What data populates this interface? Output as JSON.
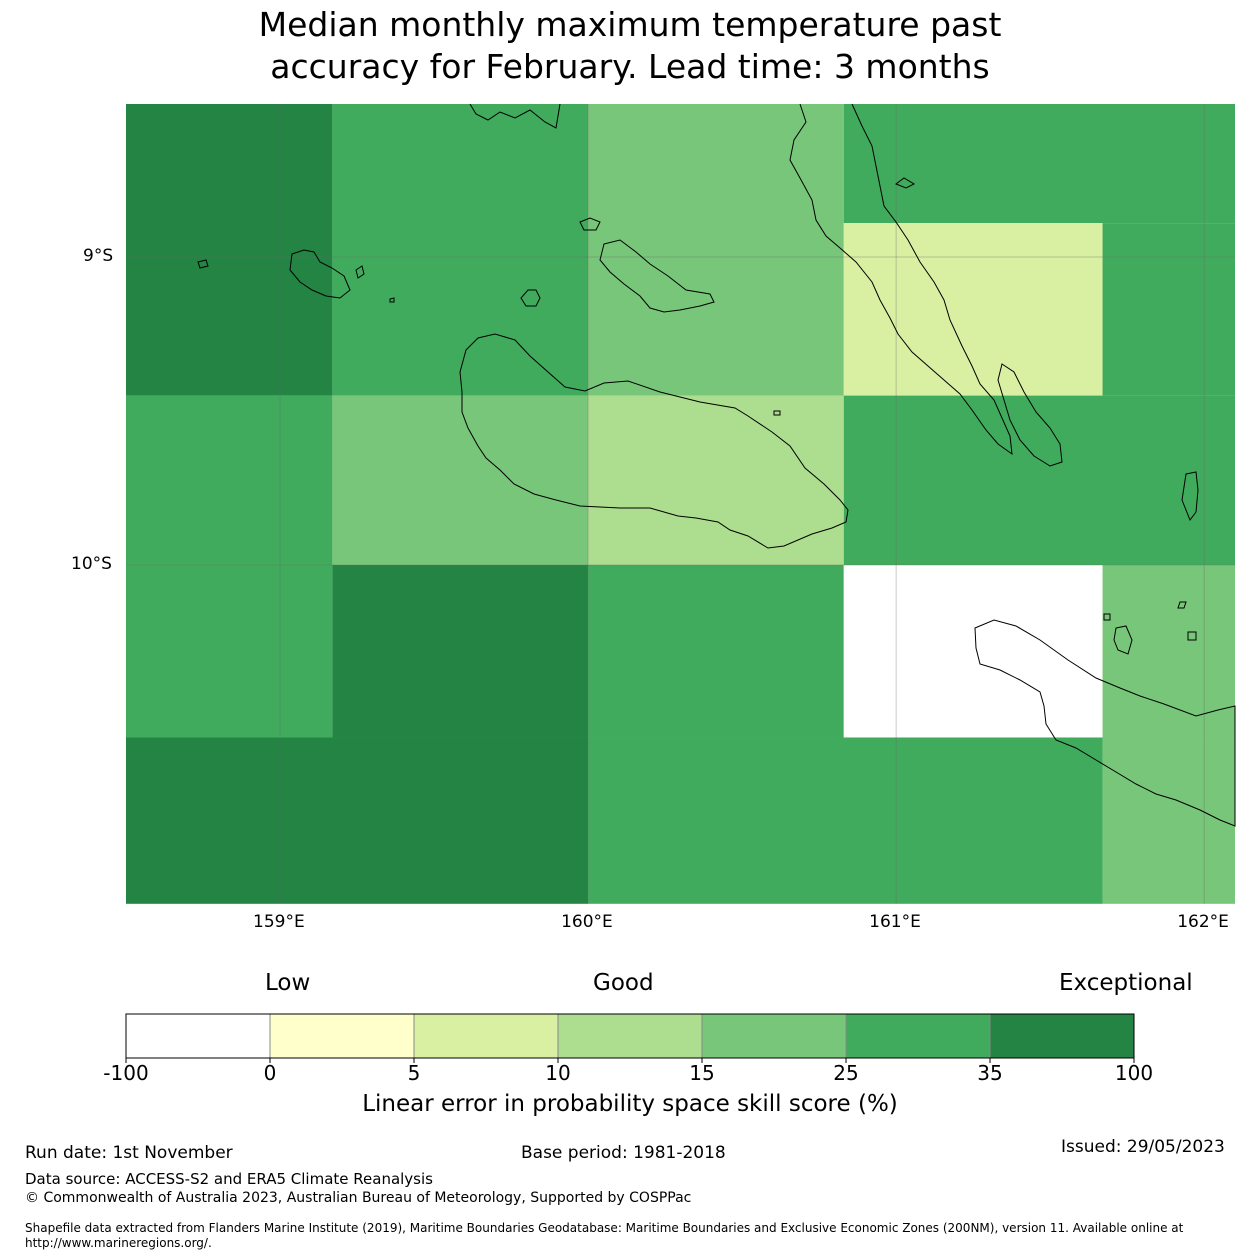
{
  "title": {
    "line1": "Median monthly maximum temperature past",
    "line2": "accuracy for February. Lead time: 3 months"
  },
  "map": {
    "lat_labels": [
      "9°S",
      "10°S"
    ],
    "lon_labels": [
      "159°E",
      "160°E",
      "161°E",
      "162°E"
    ],
    "extent": {
      "lon": [
        158.5,
        162.1
      ],
      "lat": [
        -8.5,
        -11.1
      ]
    },
    "grid_cells": [
      {
        "lon0": 158.5,
        "lon1": 159.17,
        "lat0": -8.5,
        "lat1": -9.45,
        "band": "35-100"
      },
      {
        "lon0": 159.17,
        "lon1": 160.0,
        "lat0": -8.5,
        "lat1": -9.45,
        "band": "25-35"
      },
      {
        "lon0": 160.0,
        "lon1": 160.83,
        "lat0": -8.5,
        "lat1": -9.45,
        "band": "15-25"
      },
      {
        "lon0": 160.83,
        "lon1": 162.1,
        "lat0": -8.5,
        "lat1": -8.89,
        "band": "25-35"
      },
      {
        "lon0": 160.83,
        "lon1": 161.67,
        "lat0": -8.89,
        "lat1": -9.45,
        "band": "5-10"
      },
      {
        "lon0": 161.67,
        "lon1": 162.1,
        "lat0": -8.89,
        "lat1": -9.45,
        "band": "25-35"
      },
      {
        "lon0": 158.5,
        "lon1": 159.17,
        "lat0": -9.45,
        "lat1": -10.0,
        "band": "25-35"
      },
      {
        "lon0": 159.17,
        "lon1": 160.0,
        "lat0": -9.45,
        "lat1": -10.0,
        "band": "15-25"
      },
      {
        "lon0": 160.0,
        "lon1": 160.83,
        "lat0": -9.45,
        "lat1": -10.0,
        "band": "10-15"
      },
      {
        "lon0": 160.83,
        "lon1": 162.1,
        "lat0": -9.45,
        "lat1": -10.0,
        "band": "25-35"
      },
      {
        "lon0": 158.5,
        "lon1": 159.17,
        "lat0": -10.0,
        "lat1": -10.56,
        "band": "25-35"
      },
      {
        "lon0": 159.17,
        "lon1": 160.0,
        "lat0": -10.0,
        "lat1": -10.56,
        "band": "35-100"
      },
      {
        "lon0": 160.0,
        "lon1": 160.83,
        "lat0": -10.0,
        "lat1": -10.56,
        "band": "25-35"
      },
      {
        "lon0": 160.83,
        "lon1": 161.67,
        "lat0": -10.0,
        "lat1": -10.56,
        "band": "-100-0"
      },
      {
        "lon0": 161.67,
        "lon1": 162.1,
        "lat0": -10.0,
        "lat1": -10.56,
        "band": "15-25"
      },
      {
        "lon0": 158.5,
        "lon1": 160.0,
        "lat0": -10.56,
        "lat1": -11.1,
        "band": "35-100"
      },
      {
        "lon0": 160.0,
        "lon1": 161.67,
        "lat0": -10.56,
        "lat1": -11.1,
        "band": "25-35"
      },
      {
        "lon0": 161.67,
        "lon1": 162.1,
        "lat0": -10.56,
        "lat1": -11.1,
        "band": "15-25"
      }
    ]
  },
  "legend": {
    "qualitative": [
      "Low",
      "Good",
      "Exceptional"
    ],
    "bands": [
      {
        "id": "-100-0",
        "color": "#ffffff"
      },
      {
        "id": "0-5",
        "color": "#ffffcc"
      },
      {
        "id": "5-10",
        "color": "#d9f0a3"
      },
      {
        "id": "10-15",
        "color": "#addd8e"
      },
      {
        "id": "15-25",
        "color": "#78c679"
      },
      {
        "id": "25-35",
        "color": "#41ab5d"
      },
      {
        "id": "35-100",
        "color": "#238443"
      }
    ],
    "ticks": [
      "-100",
      "0",
      "5",
      "10",
      "15",
      "25",
      "35",
      "100"
    ],
    "label": "Linear error in probability space skill score (%)"
  },
  "footer": {
    "run_date": "Run date: 1st November",
    "base_period": "Base period: 1981-2018",
    "issued": "Issued: 29/05/2023",
    "data_source": "Data source: ACCESS-S2 and ERA5 Climate Reanalysis",
    "copyright": "© Commonwealth of Australia 2023, Australian Bureau of Meteorology, Supported by COSPPac",
    "shapefile": "Shapefile data extracted from Flanders Marine Institute (2019), Maritime Boundaries Geodatabase: Maritime Boundaries and Exclusive Economic Zones (200NM), version 11. Available online at http://www.marineregions.org/."
  }
}
